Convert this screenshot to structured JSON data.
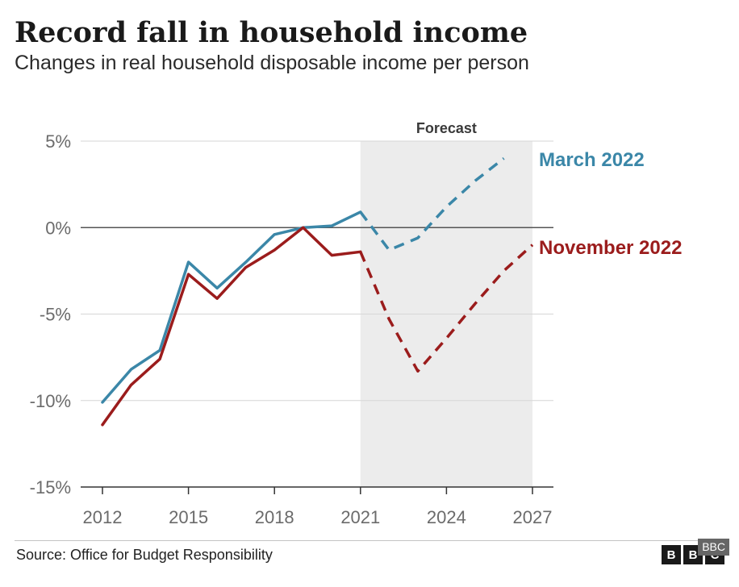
{
  "chart_data": {
    "type": "line",
    "title": "Record fall in household income",
    "subtitle": "Changes in real household disposable income per person",
    "x_ticks": [
      2012,
      2015,
      2018,
      2021,
      2024,
      2027
    ],
    "y_ticks": [
      5,
      0,
      -5,
      -10,
      -15
    ],
    "y_tick_labels": [
      "5%",
      "0%",
      "-5%",
      "-10%",
      "-15%"
    ],
    "xlim": [
      2012,
      2027
    ],
    "ylim": [
      -15,
      5
    ],
    "forecast_band": {
      "label": "Forecast",
      "from": 2021,
      "to": 2027
    },
    "series": [
      {
        "name": "March 2022",
        "color": "#3b87a8",
        "actual": {
          "x": [
            2012,
            2013,
            2014,
            2015,
            2016,
            2017,
            2018,
            2019,
            2020,
            2021
          ],
          "y": [
            -10.1,
            -8.2,
            -7.1,
            -2.0,
            -3.5,
            -2.0,
            -0.4,
            0.0,
            0.1,
            0.9
          ]
        },
        "forecast": {
          "x": [
            2021,
            2022,
            2023,
            2024,
            2025,
            2026
          ],
          "y": [
            0.9,
            -1.3,
            -0.6,
            1.2,
            2.7,
            4.0
          ]
        }
      },
      {
        "name": "November 2022",
        "color": "#9b1c1c",
        "actual": {
          "x": [
            2012,
            2013,
            2014,
            2015,
            2016,
            2017,
            2018,
            2019,
            2020,
            2021
          ],
          "y": [
            -11.4,
            -9.1,
            -7.6,
            -2.7,
            -4.1,
            -2.3,
            -1.3,
            0.0,
            -1.6,
            -1.4
          ]
        },
        "forecast": {
          "x": [
            2021,
            2022,
            2023,
            2024,
            2025,
            2026,
            2027
          ],
          "y": [
            -1.4,
            -5.3,
            -8.3,
            -6.4,
            -4.4,
            -2.5,
            -1.0
          ]
        }
      }
    ]
  },
  "footer": {
    "source": "Source: Office for Budget Responsibility",
    "logo_letters": [
      "B",
      "B",
      "C"
    ],
    "logo_caption": "BBC"
  }
}
